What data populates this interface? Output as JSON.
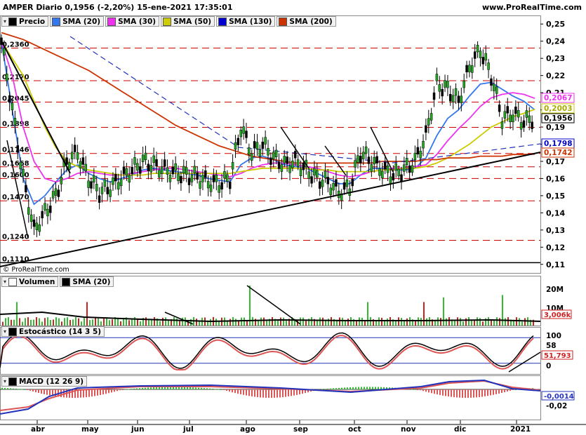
{
  "header": {
    "title": "AMPER Diario 0,1956 (-2,20%) 15-ene-2021 17:35:01",
    "site": "www.ProRealTime.com"
  },
  "credit": "© ProRealTime.com",
  "price_panel": {
    "legend": [
      {
        "label": "Precio",
        "color": "#000000"
      },
      {
        "label": "SMA (20)",
        "color": "#3377ee"
      },
      {
        "label": "SMA (30)",
        "color": "#ee33ee"
      },
      {
        "label": "SMA (50)",
        "color": "#cccc00"
      },
      {
        "label": "SMA (130)",
        "color": "#0000cc"
      },
      {
        "label": "SMA (200)",
        "color": "#cc3300"
      }
    ],
    "level_labels": [
      "0,2360",
      "0,2170",
      "0,2045",
      "0,1898",
      "0,1746",
      "0,1668",
      "0,1600",
      "0,1470",
      "0,1240",
      "0,1110"
    ],
    "y_ticks": [
      "0,25",
      "0,24",
      "0,23",
      "0,22",
      "0,21",
      "0,20",
      "0,19",
      "0,18",
      "0,17",
      "0,16",
      "0,15",
      "0,14",
      "0,13",
      "0,12",
      "0,11"
    ],
    "value_tags": [
      {
        "text": "0,2067",
        "color": "#ee33ee"
      },
      {
        "text": "0,2003",
        "color": "#cccc00"
      },
      {
        "text": "0,1956",
        "color": "#000000"
      },
      {
        "text": "0,1798",
        "color": "#0000cc"
      },
      {
        "text": "0,1742",
        "color": "#cc3300"
      }
    ]
  },
  "volume_panel": {
    "legend": [
      {
        "label": "Volumen",
        "color": "#ffffff"
      },
      {
        "label": "SMA (20)",
        "color": "#000000"
      }
    ],
    "y_ticks": [
      "20M",
      "10M"
    ],
    "value_tag": "3,006k"
  },
  "stoch_panel": {
    "legend": [
      {
        "label": "Estocástico (14 3 5)",
        "color": "#000000"
      }
    ],
    "y_ticks": [
      "100",
      "58",
      "0"
    ],
    "value_tag": "51,793"
  },
  "macd_panel": {
    "legend": [
      {
        "label": "MACD (12 26 9)",
        "color": "#000000"
      }
    ],
    "y_ticks": [
      "-0,02"
    ],
    "value_tags": [
      "-0,0014"
    ]
  },
  "x_labels": [
    "abr",
    "may",
    "jun",
    "jul",
    "ago",
    "sep",
    "oct",
    "nov",
    "dic",
    "2021"
  ],
  "chart_data": {
    "type": "line",
    "ylim": [
      0.11,
      0.255
    ],
    "series": [
      {
        "name": "Precio",
        "values": [
          0.24,
          0.2,
          0.16,
          0.13,
          0.14,
          0.15,
          0.17,
          0.175,
          0.16,
          0.152,
          0.155,
          0.16,
          0.165,
          0.17,
          0.168,
          0.165,
          0.163,
          0.162,
          0.161,
          0.158,
          0.157,
          0.16,
          0.19,
          0.175,
          0.18,
          0.172,
          0.168,
          0.17,
          0.165,
          0.16,
          0.158,
          0.152,
          0.155,
          0.175,
          0.17,
          0.165,
          0.162,
          0.165,
          0.17,
          0.185,
          0.215,
          0.212,
          0.205,
          0.225,
          0.235,
          0.22,
          0.195,
          0.198,
          0.193,
          0.1956
        ]
      },
      {
        "name": "SMA (20)",
        "values": [
          0.24,
          0.2,
          0.16,
          0.145,
          0.15,
          0.158,
          0.165,
          0.168,
          0.163,
          0.16,
          0.158,
          0.16,
          0.162,
          0.165,
          0.166,
          0.165,
          0.164,
          0.163,
          0.162,
          0.16,
          0.159,
          0.158,
          0.168,
          0.172,
          0.173,
          0.171,
          0.168,
          0.167,
          0.166,
          0.163,
          0.16,
          0.157,
          0.157,
          0.162,
          0.166,
          0.166,
          0.165,
          0.165,
          0.166,
          0.172,
          0.185,
          0.195,
          0.2,
          0.208,
          0.215,
          0.216,
          0.212,
          0.208,
          0.205,
          0.2
        ]
      },
      {
        "name": "SMA (30)",
        "values": [
          0.24,
          0.22,
          0.19,
          0.17,
          0.16,
          0.158,
          0.16,
          0.163,
          0.164,
          0.163,
          0.162,
          0.162,
          0.163,
          0.164,
          0.165,
          0.166,
          0.166,
          0.165,
          0.164,
          0.163,
          0.162,
          0.161,
          0.163,
          0.166,
          0.168,
          0.169,
          0.169,
          0.168,
          0.167,
          0.166,
          0.164,
          0.162,
          0.161,
          0.162,
          0.164,
          0.165,
          0.166,
          0.166,
          0.167,
          0.168,
          0.174,
          0.182,
          0.189,
          0.195,
          0.202,
          0.207,
          0.209,
          0.21,
          0.209,
          0.2067
        ]
      },
      {
        "name": "SMA (50)",
        "values": [
          0.24,
          0.23,
          0.22,
          0.205,
          0.19,
          0.178,
          0.17,
          0.167,
          0.165,
          0.164,
          0.163,
          0.162,
          0.162,
          0.162,
          0.163,
          0.163,
          0.163,
          0.163,
          0.163,
          0.163,
          0.163,
          0.163,
          0.164,
          0.165,
          0.166,
          0.166,
          0.166,
          0.166,
          0.166,
          0.165,
          0.165,
          0.164,
          0.164,
          0.164,
          0.164,
          0.165,
          0.165,
          0.166,
          0.166,
          0.167,
          0.169,
          0.172,
          0.176,
          0.18,
          0.185,
          0.19,
          0.193,
          0.196,
          0.198,
          0.2003
        ]
      },
      {
        "name": "SMA (200)",
        "values": [
          0.245,
          0.243,
          0.241,
          0.238,
          0.235,
          0.232,
          0.229,
          0.226,
          0.223,
          0.219,
          0.215,
          0.211,
          0.207,
          0.203,
          0.199,
          0.195,
          0.191,
          0.188,
          0.185,
          0.182,
          0.179,
          0.177,
          0.175,
          0.173,
          0.172,
          0.171,
          0.17,
          0.169,
          0.169,
          0.169,
          0.169,
          0.169,
          0.169,
          0.169,
          0.169,
          0.17,
          0.17,
          0.17,
          0.17,
          0.171,
          0.171,
          0.172,
          0.172,
          0.172,
          0.173,
          0.173,
          0.173,
          0.174,
          0.174,
          0.1742
        ]
      }
    ]
  }
}
